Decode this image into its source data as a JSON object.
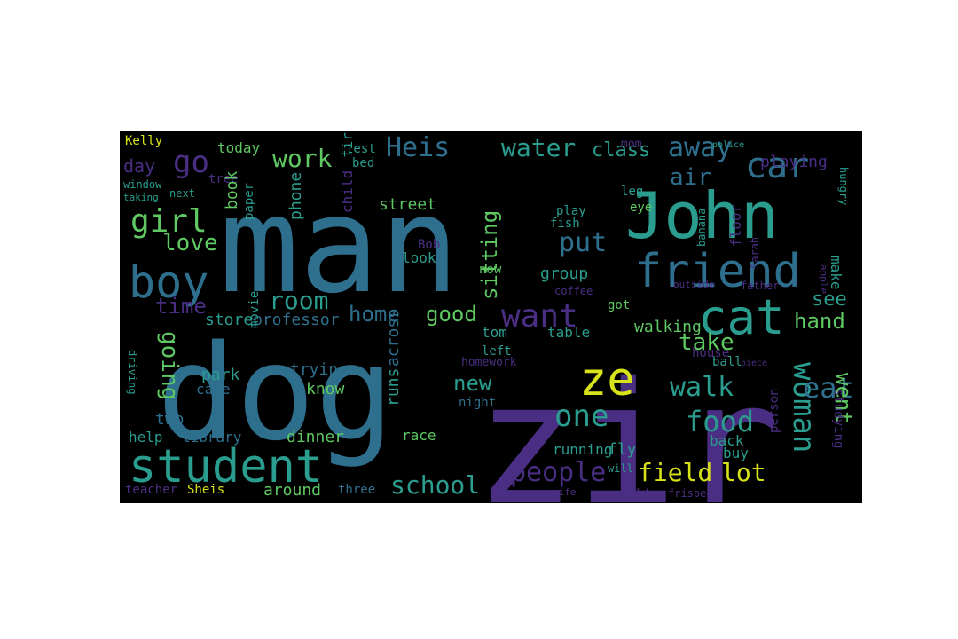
{
  "background": "#000000",
  "palette": {
    "blue": "#2f6f8e",
    "teal": "#2a9d8f",
    "purple": "#4a2e83",
    "green": "#5ec962",
    "yellow": "#d8e219",
    "dark_purple": "#3b1f63"
  },
  "words": [
    {
      "text": "man",
      "weight": 100,
      "color": "blue"
    },
    {
      "text": "dog",
      "weight": 92,
      "color": "blue"
    },
    {
      "text": "zir",
      "weight": 96,
      "color": "purple"
    },
    {
      "text": "John",
      "weight": 52,
      "color": "teal"
    },
    {
      "text": "friend",
      "weight": 38,
      "color": "blue"
    },
    {
      "text": "student",
      "weight": 38,
      "color": "teal"
    },
    {
      "text": "cat",
      "weight": 36,
      "color": "teal"
    },
    {
      "text": "boy",
      "weight": 34,
      "color": "blue"
    },
    {
      "text": "ze",
      "weight": 34,
      "color": "yellow"
    },
    {
      "text": "car",
      "weight": 28,
      "color": "blue"
    },
    {
      "text": "want",
      "weight": 26,
      "color": "purple"
    },
    {
      "text": "one",
      "weight": 26,
      "color": "teal"
    },
    {
      "text": "girl",
      "weight": 24,
      "color": "green"
    },
    {
      "text": "Heis",
      "weight": 22,
      "color": "blue"
    },
    {
      "text": "go",
      "weight": 22,
      "color": "purple"
    },
    {
      "text": "work",
      "weight": 20,
      "color": "green"
    },
    {
      "text": "water",
      "weight": 20,
      "color": "teal"
    },
    {
      "text": "away",
      "weight": 20,
      "color": "blue"
    },
    {
      "text": "class",
      "weight": 18,
      "color": "teal"
    },
    {
      "text": "air",
      "weight": 18,
      "color": "blue"
    },
    {
      "text": "love",
      "weight": 18,
      "color": "green"
    },
    {
      "text": "put",
      "weight": 20,
      "color": "blue"
    },
    {
      "text": "sitting",
      "weight": 18,
      "color": "green"
    },
    {
      "text": "room",
      "weight": 20,
      "color": "teal"
    },
    {
      "text": "home",
      "weight": 18,
      "color": "blue"
    },
    {
      "text": "good",
      "weight": 18,
      "color": "green"
    },
    {
      "text": "take",
      "weight": 18,
      "color": "green"
    },
    {
      "text": "hand",
      "weight": 16,
      "color": "green"
    },
    {
      "text": "see",
      "weight": 16,
      "color": "teal"
    },
    {
      "text": "time",
      "weight": 16,
      "color": "purple"
    },
    {
      "text": "day",
      "weight": 16,
      "color": "purple"
    },
    {
      "text": "going",
      "weight": 18,
      "color": "green"
    },
    {
      "text": "walk",
      "weight": 20,
      "color": "teal"
    },
    {
      "text": "food",
      "weight": 22,
      "color": "teal"
    },
    {
      "text": "woman",
      "weight": 24,
      "color": "teal"
    },
    {
      "text": "eat",
      "weight": 22,
      "color": "blue"
    },
    {
      "text": "went",
      "weight": 20,
      "color": "green"
    },
    {
      "text": "new",
      "weight": 18,
      "color": "teal"
    },
    {
      "text": "people",
      "weight": 22,
      "color": "purple"
    },
    {
      "text": "school",
      "weight": 22,
      "color": "teal"
    },
    {
      "text": "field",
      "weight": 22,
      "color": "yellow"
    },
    {
      "text": "lot",
      "weight": 22,
      "color": "yellow"
    },
    {
      "text": "walking",
      "weight": 14,
      "color": "green"
    },
    {
      "text": "street",
      "weight": 14,
      "color": "green"
    },
    {
      "text": "playing",
      "weight": 13,
      "color": "purple"
    },
    {
      "text": "today",
      "weight": 12,
      "color": "green"
    },
    {
      "text": "Kelly",
      "weight": 11,
      "color": "yellow"
    },
    {
      "text": "test",
      "weight": 11,
      "color": "teal"
    },
    {
      "text": "bed",
      "weight": 11,
      "color": "teal"
    },
    {
      "text": "tree",
      "weight": 10,
      "color": "purple"
    },
    {
      "text": "window",
      "weight": 9,
      "color": "teal"
    },
    {
      "text": "next",
      "weight": 9,
      "color": "teal"
    },
    {
      "text": "taking",
      "weight": 8,
      "color": "teal"
    },
    {
      "text": "book",
      "weight": 13,
      "color": "green"
    },
    {
      "text": "phone",
      "weight": 13,
      "color": "teal"
    },
    {
      "text": "child",
      "weight": 13,
      "color": "purple"
    },
    {
      "text": "fire",
      "weight": 13,
      "color": "teal"
    },
    {
      "text": "paper",
      "weight": 11,
      "color": "teal"
    },
    {
      "text": "store",
      "weight": 13,
      "color": "teal"
    },
    {
      "text": "professor",
      "weight": 13,
      "color": "blue"
    },
    {
      "text": "park",
      "weight": 13,
      "color": "teal"
    },
    {
      "text": "cake",
      "weight": 12,
      "color": "blue"
    },
    {
      "text": "trying",
      "weight": 13,
      "color": "blue"
    },
    {
      "text": "know",
      "weight": 13,
      "color": "green"
    },
    {
      "text": "movie",
      "weight": 10,
      "color": "teal"
    },
    {
      "text": "two",
      "weight": 13,
      "color": "blue"
    },
    {
      "text": "help",
      "weight": 12,
      "color": "teal"
    },
    {
      "text": "library",
      "weight": 12,
      "color": "blue"
    },
    {
      "text": "dinner",
      "weight": 13,
      "color": "green"
    },
    {
      "text": "teacher",
      "weight": 11,
      "color": "purple"
    },
    {
      "text": "Sheis",
      "weight": 11,
      "color": "yellow"
    },
    {
      "text": "around",
      "weight": 13,
      "color": "green"
    },
    {
      "text": "three",
      "weight": 11,
      "color": "blue"
    },
    {
      "text": "runs",
      "weight": 14,
      "color": "teal"
    },
    {
      "text": "across",
      "weight": 14,
      "color": "blue"
    },
    {
      "text": "look",
      "weight": 12,
      "color": "teal"
    },
    {
      "text": "Bob",
      "weight": 10,
      "color": "purple"
    },
    {
      "text": "now",
      "weight": 11,
      "color": "green"
    },
    {
      "text": "tom",
      "weight": 12,
      "color": "teal"
    },
    {
      "text": "night",
      "weight": 11,
      "color": "blue"
    },
    {
      "text": "race",
      "weight": 11,
      "color": "green"
    },
    {
      "text": "homework",
      "weight": 10,
      "color": "purple"
    },
    {
      "text": "left",
      "weight": 11,
      "color": "teal"
    },
    {
      "text": "table",
      "weight": 12,
      "color": "teal"
    },
    {
      "text": "running",
      "weight": 12,
      "color": "teal"
    },
    {
      "text": "fly",
      "weight": 13,
      "color": "teal"
    },
    {
      "text": "group",
      "weight": 14,
      "color": "teal"
    },
    {
      "text": "fish",
      "weight": 11,
      "color": "teal"
    },
    {
      "text": "play",
      "weight": 11,
      "color": "teal"
    },
    {
      "text": "eye",
      "weight": 10,
      "color": "green"
    },
    {
      "text": "leg",
      "weight": 10,
      "color": "teal"
    },
    {
      "text": "mom",
      "weight": 10,
      "color": "purple"
    },
    {
      "text": "coffee",
      "weight": 9,
      "color": "purple"
    },
    {
      "text": "got",
      "weight": 10,
      "color": "green"
    },
    {
      "text": "make",
      "weight": 11,
      "color": "teal"
    },
    {
      "text": "floor",
      "weight": 11,
      "color": "purple"
    },
    {
      "text": "banana",
      "weight": 9,
      "color": "teal"
    },
    {
      "text": "ball",
      "weight": 11,
      "color": "teal"
    },
    {
      "text": "house",
      "weight": 11,
      "color": "purple"
    },
    {
      "text": "buy",
      "weight": 12,
      "color": "teal"
    },
    {
      "text": "person",
      "weight": 11,
      "color": "purple"
    },
    {
      "text": "back",
      "weight": 12,
      "color": "teal"
    },
    {
      "text": "will",
      "weight": 9,
      "color": "teal"
    },
    {
      "text": "world",
      "weight": 9,
      "color": "purple"
    },
    {
      "text": "frisbee",
      "weight": 9,
      "color": "purple"
    },
    {
      "text": "studying",
      "weight": 10,
      "color": "purple"
    },
    {
      "text": "Sarah",
      "weight": 9,
      "color": "purple"
    },
    {
      "text": "father",
      "weight": 9,
      "color": "purple"
    },
    {
      "text": "hungry",
      "weight": 9,
      "color": "teal"
    },
    {
      "text": "driving",
      "weight": 8,
      "color": "teal"
    },
    {
      "text": "wife",
      "weight": 8,
      "color": "purple"
    },
    {
      "text": "outside",
      "weight": 8,
      "color": "purple"
    },
    {
      "text": "apple",
      "weight": 8,
      "color": "purple"
    },
    {
      "text": "police",
      "weight": 7,
      "color": "teal"
    },
    {
      "text": "piece",
      "weight": 7,
      "color": "purple"
    }
  ]
}
